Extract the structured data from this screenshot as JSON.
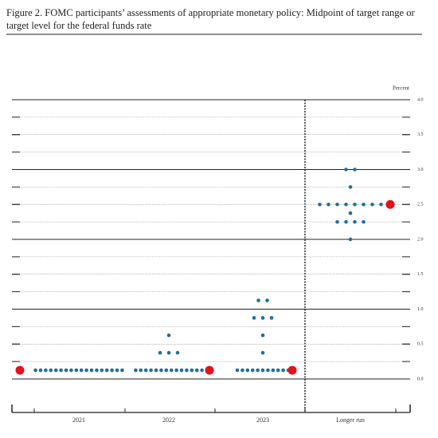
{
  "chart_data": {
    "type": "dot-plot",
    "title": "Figure 2.  FOMC participants’ assessments of appropriate monetary policy: Midpoint of target range or target level for the federal funds rate",
    "y_label": "Percent",
    "categories": [
      "2021",
      "2022",
      "2023",
      "Longer run"
    ],
    "groups": [
      [
        {
          "value": 0.125,
          "count": 18
        }
      ],
      [
        {
          "value": 0.125,
          "count": 14
        },
        {
          "value": 0.375,
          "count": 3
        },
        {
          "value": 0.625,
          "count": 1
        }
      ],
      [
        {
          "value": 0.125,
          "count": 11
        },
        {
          "value": 0.375,
          "count": 1
        },
        {
          "value": 0.625,
          "count": 1
        },
        {
          "value": 0.875,
          "count": 3
        },
        {
          "value": 1.125,
          "count": 2
        }
      ],
      [
        {
          "value": 2.0,
          "count": 1
        },
        {
          "value": 2.25,
          "count": 4
        },
        {
          "value": 2.375,
          "count": 1
        },
        {
          "value": 2.5,
          "count": 8
        },
        {
          "value": 2.75,
          "count": 1
        },
        {
          "value": 3.0,
          "count": 2
        }
      ]
    ],
    "color": "#1f6f9e",
    "red_markers": {
      "color": "#e3121b",
      "values": [
        0.125,
        0.125,
        0.125,
        2.5
      ]
    },
    "ylim": [
      0,
      4
    ],
    "yticks": [
      {
        "value": 0,
        "label": "0.0"
      },
      0.5,
      {
        "value": 1,
        "label": "1.0"
      },
      1.5,
      {
        "value": 2,
        "label": "2.0"
      },
      2.5,
      {
        "value": 3,
        "label": "3.0"
      },
      3.5,
      {
        "value": 4,
        "label": "4.0"
      }
    ],
    "minor_grid_step": 0.25,
    "grid": true
  }
}
